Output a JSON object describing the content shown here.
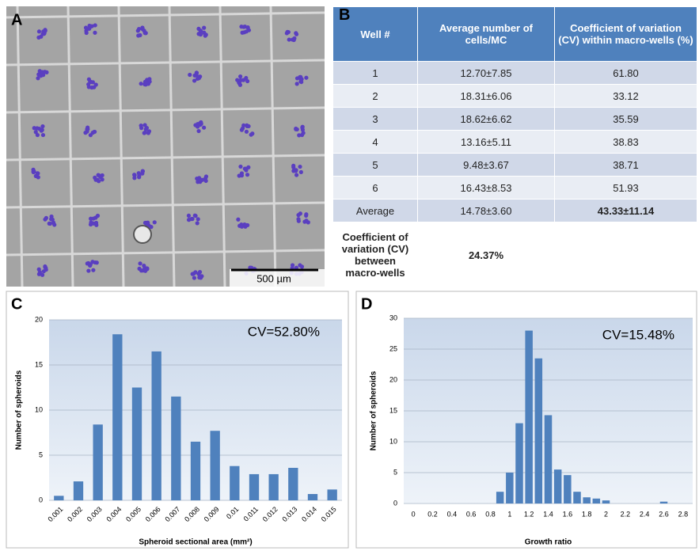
{
  "panel_a": {
    "label": "A",
    "scale_bar": "500 µm"
  },
  "table": {
    "label": "B",
    "header": [
      "Well #",
      "Average number of cells/MC",
      "Coefficient of variation (CV) within macro-wells (%)"
    ],
    "rows": [
      [
        "1",
        "12.70±7.85",
        "61.80"
      ],
      [
        "2",
        "18.31±6.06",
        "33.12"
      ],
      [
        "3",
        "18.62±6.62",
        "35.59"
      ],
      [
        "4",
        "13.16±5.11",
        "38.83"
      ],
      [
        "5",
        "9.48±3.67",
        "38.71"
      ],
      [
        "6",
        "16.43±8.53",
        "51.93"
      ],
      [
        "Average",
        "14.78±3.60",
        "43.33±11.14"
      ],
      [
        "Coefficient of variation (CV) between macro-wells",
        "24.37%"
      ]
    ]
  },
  "chart_data": [
    {
      "type": "bar",
      "label": "C",
      "annotation": "CV=52.80%",
      "xlabel": "Spheroid sectional area (mm²)",
      "ylabel": "Number of  spheroids",
      "categories": [
        "0.001",
        "0.002",
        "0.003",
        "0.004",
        "0.005",
        "0.006",
        "0.007",
        "0.008",
        "0.009",
        "0.01",
        "0.011",
        "0.012",
        "0.013",
        "0.014",
        "0.015"
      ],
      "values": [
        0.5,
        2.1,
        8.4,
        18.4,
        12.5,
        16.5,
        11.5,
        6.5,
        7.7,
        3.8,
        2.9,
        2.9,
        3.6,
        0.7,
        1.2
      ],
      "color": "#4f81bd",
      "ylim": [
        0,
        20
      ],
      "yticks": [
        0,
        5,
        10,
        15,
        20
      ],
      "grid": true
    },
    {
      "type": "bar",
      "label": "D",
      "annotation": "CV=15.48%",
      "xlabel": "Growth ratio",
      "ylabel": "Number of spheroids",
      "x": [
        0.9,
        1.0,
        1.1,
        1.2,
        1.3,
        1.4,
        1.5,
        1.6,
        1.7,
        1.8,
        1.9,
        2.0,
        2.6
      ],
      "values": [
        1.9,
        5,
        13,
        28,
        23.5,
        14.3,
        5.5,
        4.6,
        1.9,
        1,
        0.8,
        0.5,
        0.3
      ],
      "color": "#4f81bd",
      "xlim": [
        -0.1,
        2.9
      ],
      "xticks": [
        0,
        0.2,
        0.4,
        0.6,
        0.8,
        1,
        1.2,
        1.4,
        1.6,
        1.8,
        2,
        2.2,
        2.4,
        2.6,
        2.8
      ],
      "ylim": [
        0,
        30
      ],
      "yticks": [
        0,
        5,
        10,
        15,
        20,
        25,
        30
      ],
      "grid": true
    }
  ]
}
